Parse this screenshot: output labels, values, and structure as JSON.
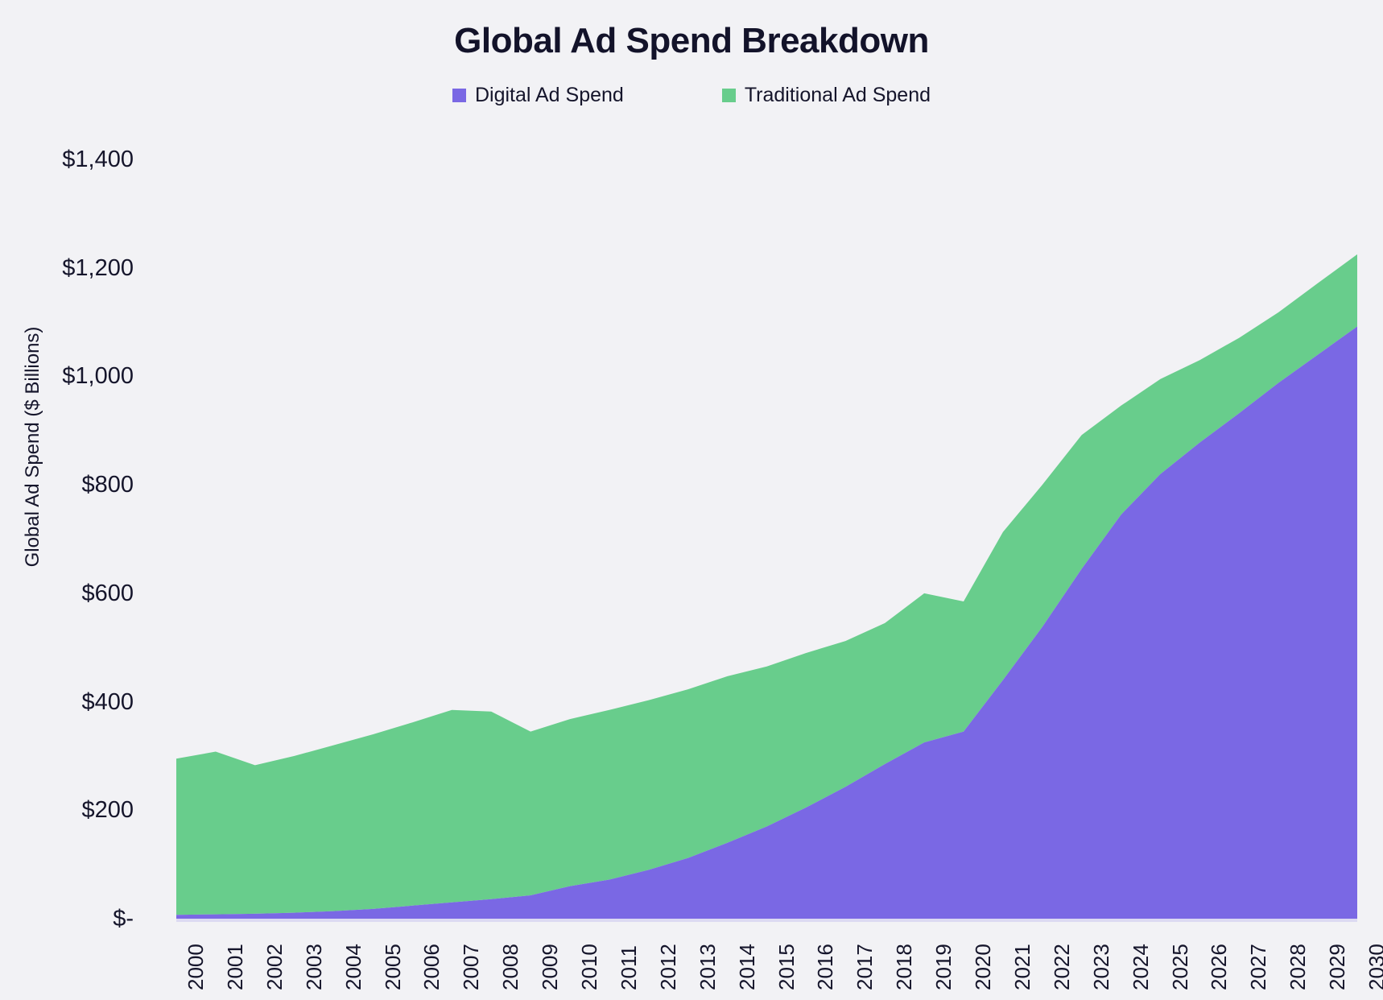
{
  "chart_data": {
    "type": "area",
    "stacked": true,
    "title": "Global Ad Spend Breakdown",
    "ylabel": "Global Ad Spend ($ Billions)",
    "xlabel": "",
    "grid": false,
    "legend_position": "top",
    "background_color": "#F2F2F5",
    "text_color": "#15152B",
    "ylim": [
      0,
      1400
    ],
    "categories": [
      "2000",
      "2001",
      "2002",
      "2003",
      "2004",
      "2005",
      "2006",
      "2007",
      "2008",
      "2009",
      "2010",
      "2011",
      "2012",
      "2013",
      "2014",
      "2015",
      "2016",
      "2017",
      "2018",
      "2019",
      "2020",
      "2021",
      "2022",
      "2023",
      "2024",
      "2025",
      "2026",
      "2027",
      "2028",
      "2029",
      "2030"
    ],
    "series": [
      {
        "name": "Digital Ad Spend",
        "color": "#7A68E4",
        "values": [
          7,
          8,
          9,
          11,
          14,
          18,
          24,
          30,
          36,
          43,
          60,
          72,
          90,
          112,
          140,
          170,
          205,
          243,
          285,
          325,
          345,
          440,
          538,
          645,
          745,
          820,
          878,
          932,
          988,
          1040,
          1092
        ]
      },
      {
        "name": "Traditional Ad Spend",
        "color": "#68CD8C",
        "values": [
          288,
          300,
          274,
          289,
          306,
          322,
          338,
          355,
          346,
          302,
          308,
          313,
          313,
          311,
          307,
          295,
          285,
          269,
          260,
          275,
          240,
          273,
          262,
          247,
          201,
          175,
          152,
          139,
          130,
          132,
          133
        ]
      }
    ],
    "totals": [
      295,
      308,
      283,
      300,
      320,
      340,
      362,
      385,
      382,
      345,
      368,
      385,
      403,
      423,
      447,
      465,
      490,
      512,
      545,
      600,
      585,
      713,
      800,
      892,
      946,
      995,
      1030,
      1071,
      1118,
      1172,
      1225
    ],
    "y_ticks": [
      {
        "label": "$-",
        "value": 0
      },
      {
        "label": "$200",
        "value": 200
      },
      {
        "label": "$400",
        "value": 400
      },
      {
        "label": "$600",
        "value": 600
      },
      {
        "label": "$800",
        "value": 800
      },
      {
        "label": "$1,000",
        "value": 1000
      },
      {
        "label": "$1,200",
        "value": 1200
      },
      {
        "label": "$1,400",
        "value": 1400
      }
    ]
  }
}
